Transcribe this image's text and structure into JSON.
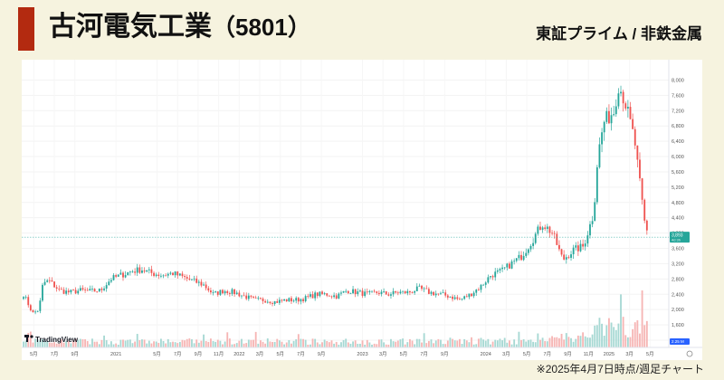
{
  "header": {
    "company": "古河電気工業",
    "code": "（5801）",
    "market": "東証プライム / 非鉄金属"
  },
  "footnote": "※2025年4月7日時点/週足チャート",
  "chart_data": {
    "type": "candlestick",
    "interval": "weekly",
    "y_ticks": [
      "8,000",
      "7,600",
      "7,200",
      "6,800",
      "6,400",
      "6,000",
      "5,600",
      "5,200",
      "4,800",
      "4,400",
      "4,000",
      "3,600",
      "3,200",
      "2,800",
      "2,400",
      "2,000",
      "1,600",
      "1,200"
    ],
    "ylim": [
      1200,
      8200
    ],
    "x_ticks": [
      "5月",
      "7月",
      "9月",
      "2021",
      "5月",
      "7月",
      "9月",
      "11月",
      "2022",
      "3月",
      "5月",
      "7月",
      "9月",
      "2023",
      "3月",
      "5月",
      "7月",
      "9月",
      "2024",
      "3月",
      "5月",
      "7月",
      "9月",
      "11月",
      "2025",
      "3月",
      "5月"
    ],
    "last_price": "3,893",
    "last_price_sub": "4d 3h",
    "last_volume": "2.25 M",
    "watermark": "TradingView",
    "colors": {
      "up": "#26a69a",
      "down": "#ef5350",
      "volume_up": "#a6d8d3",
      "volume_down": "#f6b5b4"
    },
    "anchors": [
      [
        "2020-04",
        2400
      ],
      [
        "2020-04",
        1900
      ],
      [
        "2020-05",
        2000
      ],
      [
        "2020-05",
        2700
      ],
      [
        "2020-06",
        2750
      ],
      [
        "2020-07",
        2500
      ],
      [
        "2020-08",
        2450
      ],
      [
        "2020-09",
        2500
      ],
      [
        "2020-10",
        2480
      ],
      [
        "2020-11",
        2500
      ],
      [
        "2020-12",
        2800
      ],
      [
        "2021-01",
        2900
      ],
      [
        "2021-02",
        3000
      ],
      [
        "2021-03",
        3050
      ],
      [
        "2021-04",
        2950
      ],
      [
        "2021-05",
        2900
      ],
      [
        "2021-06",
        2950
      ],
      [
        "2021-07",
        2850
      ],
      [
        "2021-08",
        2750
      ],
      [
        "2021-09",
        2650
      ],
      [
        "2021-10",
        2400
      ],
      [
        "2021-11",
        2500
      ],
      [
        "2021-12",
        2450
      ],
      [
        "2022-01",
        2350
      ],
      [
        "2022-02",
        2250
      ],
      [
        "2022-03",
        2250
      ],
      [
        "2022-04",
        2200
      ],
      [
        "2022-05",
        2250
      ],
      [
        "2022-06",
        2250
      ],
      [
        "2022-07",
        2300
      ],
      [
        "2022-08",
        2400
      ],
      [
        "2022-09",
        2400
      ],
      [
        "2022-10",
        2350
      ],
      [
        "2022-11",
        2500
      ],
      [
        "2022-12",
        2450
      ],
      [
        "2023-01",
        2400
      ],
      [
        "2023-02",
        2450
      ],
      [
        "2023-03",
        2400
      ],
      [
        "2023-04",
        2450
      ],
      [
        "2023-05",
        2450
      ],
      [
        "2023-06",
        2550
      ],
      [
        "2023-07",
        2450
      ],
      [
        "2023-08",
        2400
      ],
      [
        "2023-09",
        2350
      ],
      [
        "2023-10",
        2250
      ],
      [
        "2023-11",
        2400
      ],
      [
        "2023-12",
        2600
      ],
      [
        "2024-01",
        2900
      ],
      [
        "2024-02",
        3000
      ],
      [
        "2024-03",
        3200
      ],
      [
        "2024-04",
        3400
      ],
      [
        "2024-05",
        3800
      ],
      [
        "2024-06",
        4250
      ],
      [
        "2024-07",
        4000
      ],
      [
        "2024-08",
        3300
      ],
      [
        "2024-09",
        3550
      ],
      [
        "2024-10",
        3650
      ],
      [
        "2024-11",
        4500
      ],
      [
        "2024-11",
        6000
      ],
      [
        "2024-12",
        6900
      ],
      [
        "2025-01",
        7200
      ],
      [
        "2025-01",
        7900
      ],
      [
        "2025-02",
        7500
      ],
      [
        "2025-03",
        6400
      ],
      [
        "2025-03",
        5500
      ],
      [
        "2025-04",
        4200
      ],
      [
        "2025-04",
        3893
      ]
    ]
  }
}
